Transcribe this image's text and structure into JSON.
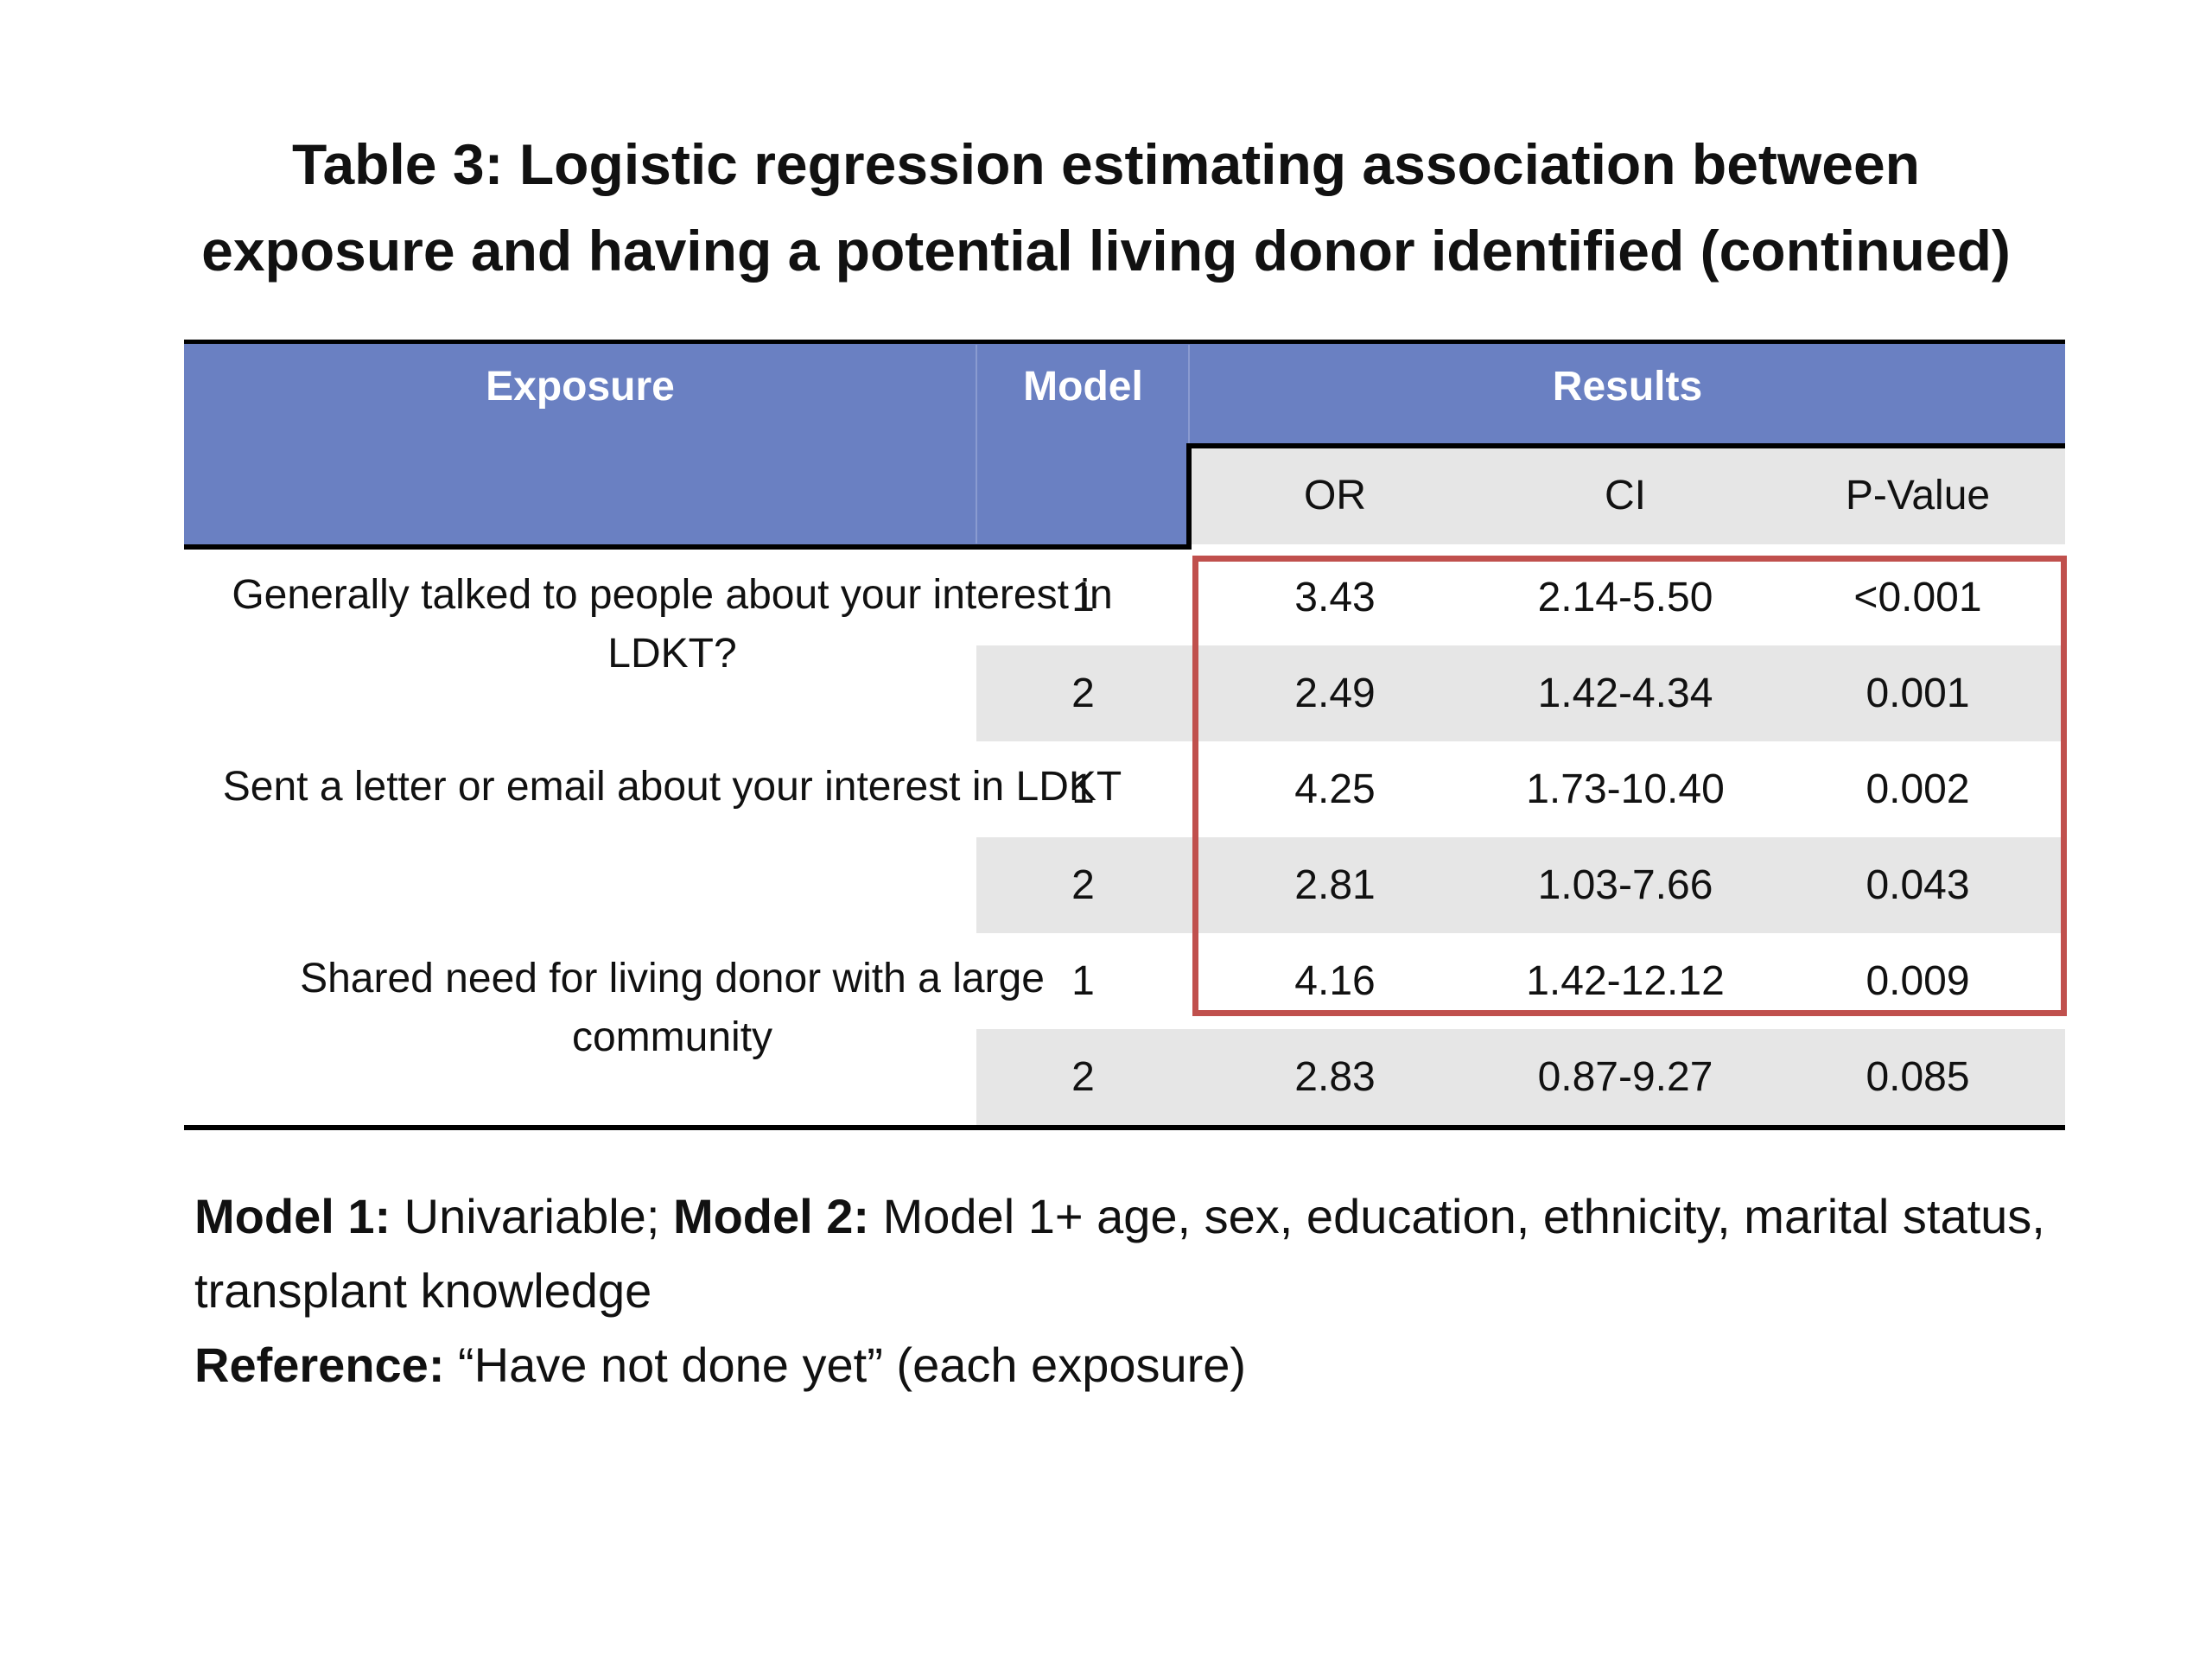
{
  "title": {
    "line1": "Table 3: Logistic regression estimating association between",
    "line2": "exposure and having a potential living donor identified (continued)"
  },
  "table": {
    "headers": {
      "exposure": "Exposure",
      "model": "Model",
      "results": "Results",
      "or": "OR",
      "ci": "CI",
      "pvalue": "P-Value"
    },
    "groups": [
      {
        "exposure": "Generally talked to people about your interest in LDKT?",
        "rows": [
          {
            "model": "1",
            "or": "3.43",
            "ci": "2.14-5.50",
            "p": "<0.001"
          },
          {
            "model": "2",
            "or": "2.49",
            "ci": "1.42-4.34",
            "p": "0.001"
          }
        ]
      },
      {
        "exposure": "Sent a letter or email about your interest in LDKT",
        "rows": [
          {
            "model": "1",
            "or": "4.25",
            "ci": "1.73-10.40",
            "p": "0.002"
          },
          {
            "model": "2",
            "or": "2.81",
            "ci": "1.03-7.66",
            "p": "0.043"
          }
        ]
      },
      {
        "exposure": "Shared need for living donor with a large community",
        "rows": [
          {
            "model": "1",
            "or": "4.16",
            "ci": "1.42-12.12",
            "p": "0.009"
          },
          {
            "model": "2",
            "or": "2.83",
            "ci": "0.87-9.27",
            "p": "0.085"
          }
        ]
      }
    ]
  },
  "notes": {
    "model1_label": "Model 1:",
    "model1_text": " Univariable; ",
    "model2_label": "Model 2:",
    "model2_text": " Model 1+ age, sex, education, ethnicity, marital status, transplant knowledge",
    "reference_label": "Reference:",
    "reference_text": " “Have not done yet” (each exposure)"
  },
  "colors": {
    "header_fill": "#6a80c2",
    "subheader_fill": "#e6e6e6",
    "row_shade": "#e6e6e6",
    "highlight_border": "#c0504d"
  }
}
